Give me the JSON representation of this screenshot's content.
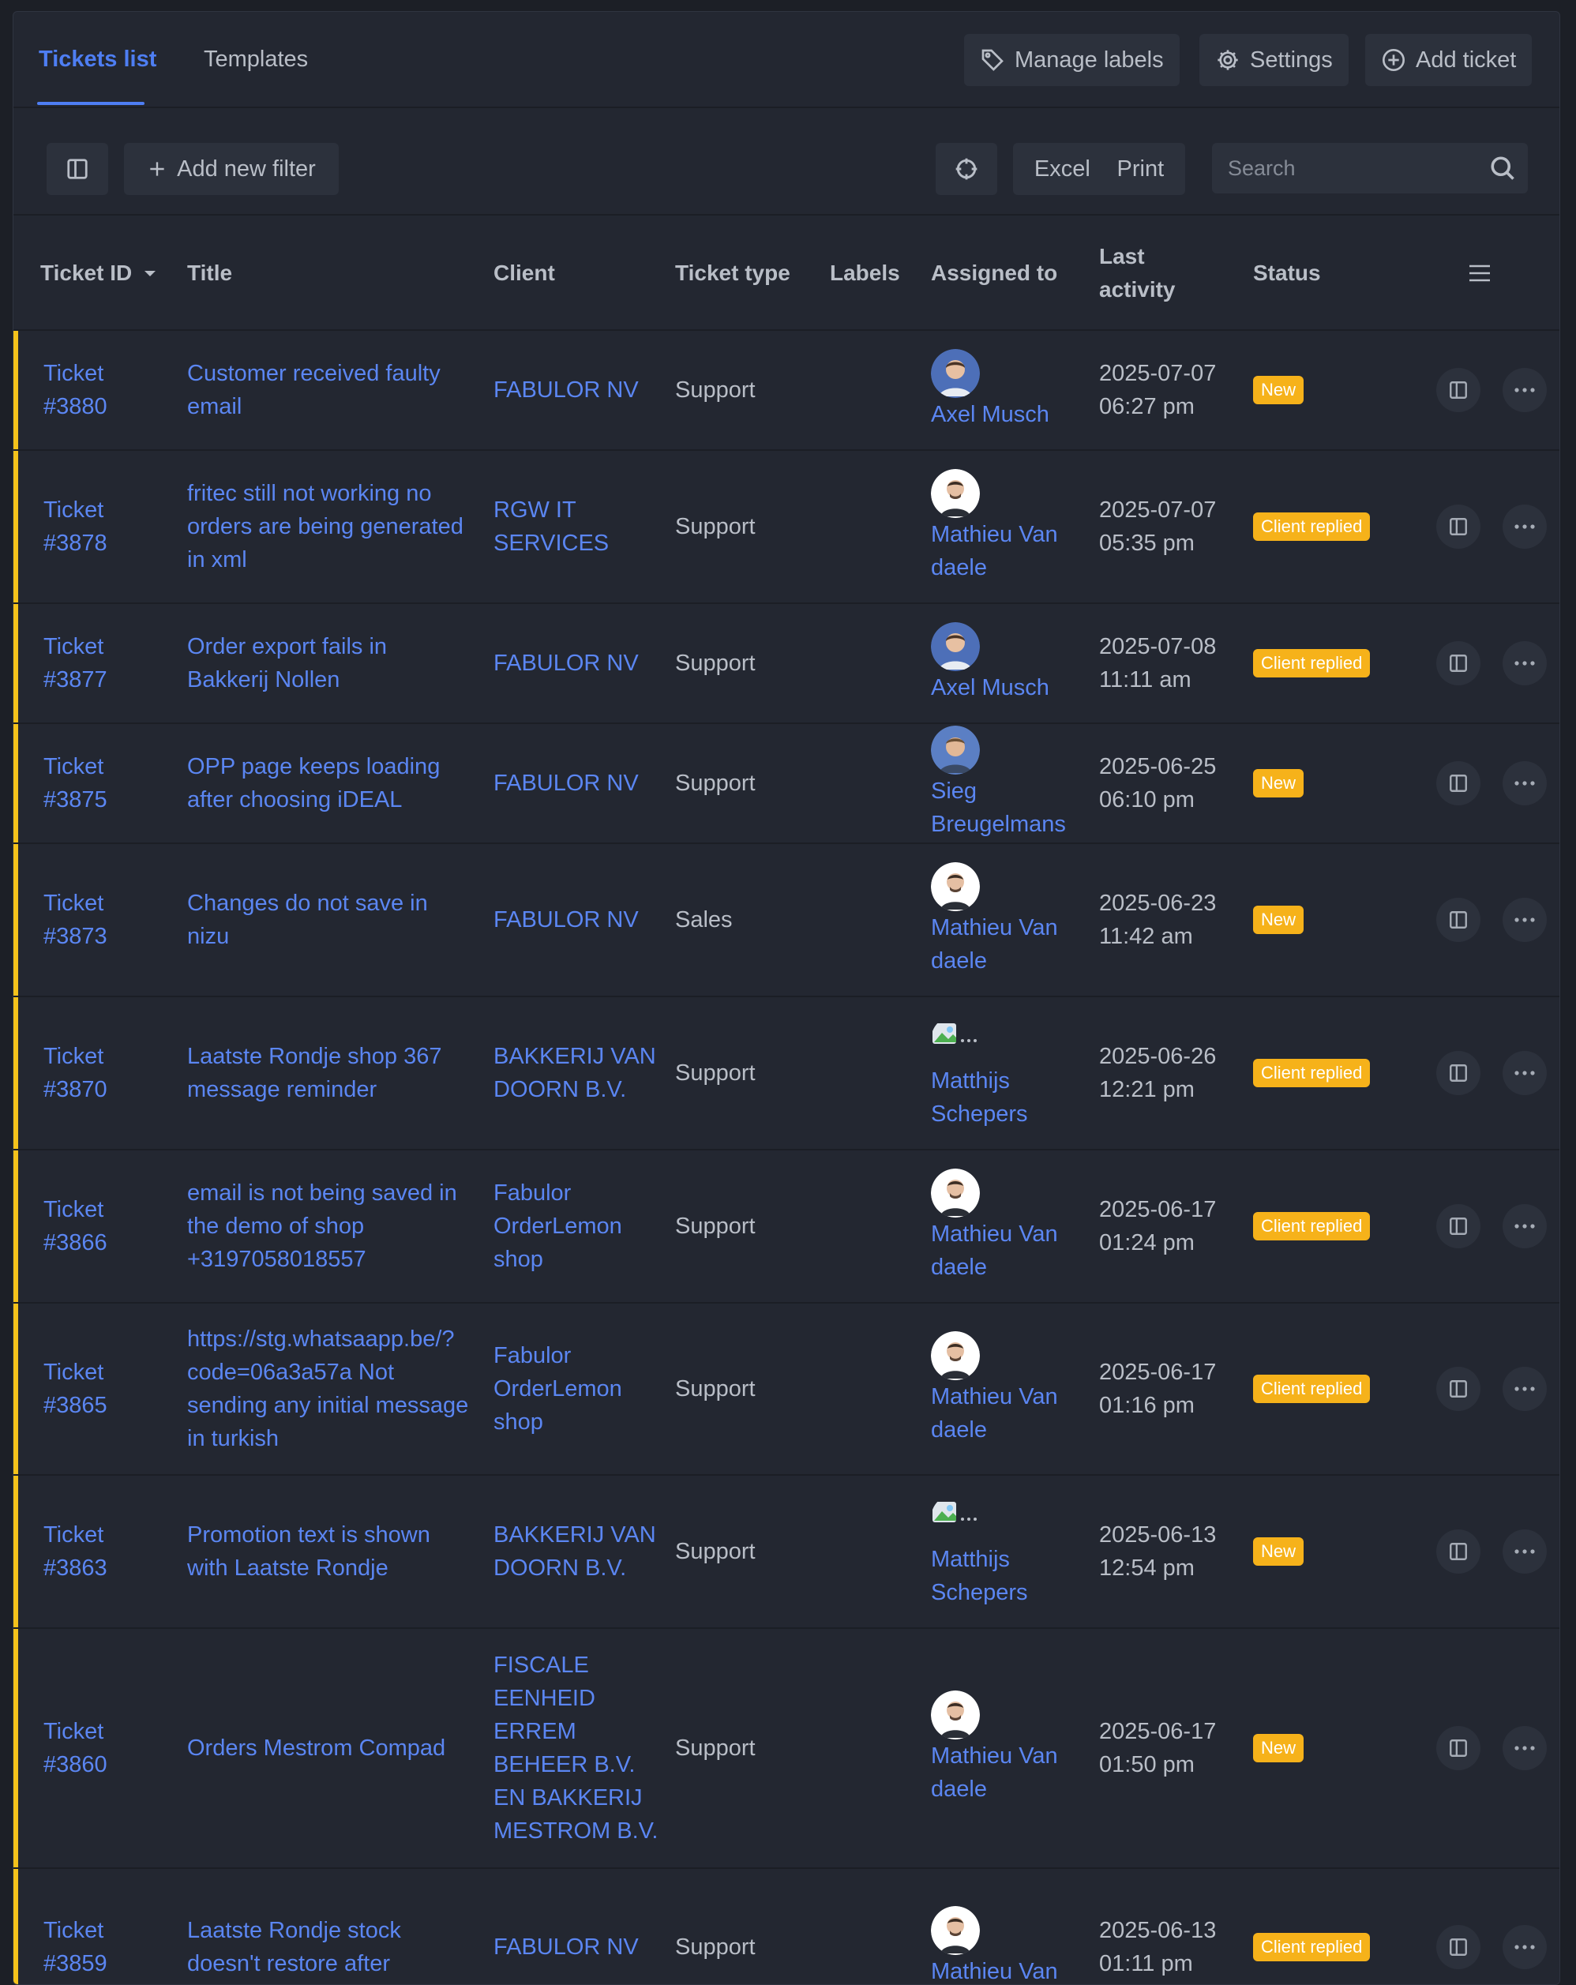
{
  "tabs": [
    {
      "label": "Tickets list",
      "active": true
    },
    {
      "label": "Templates",
      "active": false
    }
  ],
  "header_actions": {
    "manage_labels": "Manage labels",
    "settings": "Settings",
    "add_ticket": "Add ticket"
  },
  "filters": {
    "add_filter": "Add new filter",
    "excel": "Excel",
    "print": "Print",
    "search_placeholder": "Search"
  },
  "columns": {
    "ticket_id": "Ticket ID",
    "title": "Title",
    "client": "Client",
    "ticket_type": "Ticket type",
    "labels": "Labels",
    "assigned_to": "Assigned to",
    "last_activity": "Last activity",
    "status": "Status"
  },
  "colors": {
    "accent": "#4e7ef3",
    "link": "#5b86f2",
    "badge": "#f6b21a",
    "row_marker": "#f4c21b",
    "background": "#232731"
  },
  "tickets": [
    {
      "id": "Ticket #3880",
      "title": "Customer received faulty email",
      "client": "FABULOR NV",
      "type": "Support",
      "assignee": "Axel Musch",
      "avatar": "axel",
      "activity": "2025-07-07 06:27 pm",
      "status": "New"
    },
    {
      "id": "Ticket #3878",
      "title": "fritec still not working no orders are being generated in xml",
      "client": "RGW IT SERVICES",
      "type": "Support",
      "assignee": "Mathieu Van daele",
      "avatar": "mathieu",
      "activity": "2025-07-07 05:35 pm",
      "status": "Client replied"
    },
    {
      "id": "Ticket #3877",
      "title": "Order export fails in Bakkerij Nollen",
      "client": "FABULOR NV",
      "type": "Support",
      "assignee": "Axel Musch",
      "avatar": "axel",
      "activity": "2025-07-08 11:11 am",
      "status": "Client replied"
    },
    {
      "id": "Ticket #3875",
      "title": "OPP page keeps loading after choosing iDEAL",
      "client": "FABULOR NV",
      "type": "Support",
      "assignee": "Sieg Breugelmans",
      "avatar": "sieg",
      "activity": "2025-06-25 06:10 pm",
      "status": "New"
    },
    {
      "id": "Ticket #3873",
      "title": "Changes do not save in nizu",
      "client": "FABULOR NV",
      "type": "Sales",
      "assignee": "Mathieu Van daele",
      "avatar": "mathieu",
      "activity": "2025-06-23 11:42 am",
      "status": "New"
    },
    {
      "id": "Ticket #3870",
      "title": "Laatste Rondje shop 367 message reminder",
      "client": "BAKKERIJ VAN DOORN B.V.",
      "type": "Support",
      "assignee": "Matthijs Schepers",
      "avatar": "broken",
      "activity": "2025-06-26 12:21 pm",
      "status": "Client replied"
    },
    {
      "id": "Ticket #3866",
      "title": "email is not being saved in the demo of shop +3197058018557",
      "client": "Fabulor OrderLemon shop",
      "type": "Support",
      "assignee": "Mathieu Van daele",
      "avatar": "mathieu",
      "activity": "2025-06-17 01:24 pm",
      "status": "Client replied"
    },
    {
      "id": "Ticket #3865",
      "title": "https://stg.whatsaapp.be/?code=06a3a57a Not sending any initial message in turkish",
      "client": "Fabulor OrderLemon shop",
      "type": "Support",
      "assignee": "Mathieu Van daele",
      "avatar": "mathieu",
      "activity": "2025-06-17 01:16 pm",
      "status": "Client replied"
    },
    {
      "id": "Ticket #3863",
      "title": "Promotion text is shown with Laatste Rondje",
      "client": "BAKKERIJ VAN DOORN B.V.",
      "type": "Support",
      "assignee": "Matthijs Schepers",
      "avatar": "broken",
      "activity": "2025-06-13 12:54 pm",
      "status": "New"
    },
    {
      "id": "Ticket #3860",
      "title": "Orders Mestrom Compad",
      "client": "FISCALE EENHEID ERREM BEHEER B.V. EN BAKKERIJ MESTROM B.V.",
      "type": "Support",
      "assignee": "Mathieu Van daele",
      "avatar": "mathieu",
      "activity": "2025-06-17 01:50 pm",
      "status": "New"
    },
    {
      "id": "Ticket #3859",
      "title": "Laatste Rondje stock doesn't restore after",
      "client": "FABULOR NV",
      "type": "Support",
      "assignee": "Mathieu Van",
      "avatar": "mathieu",
      "activity": "2025-06-13 01:11 pm",
      "status": "Client replied"
    }
  ]
}
